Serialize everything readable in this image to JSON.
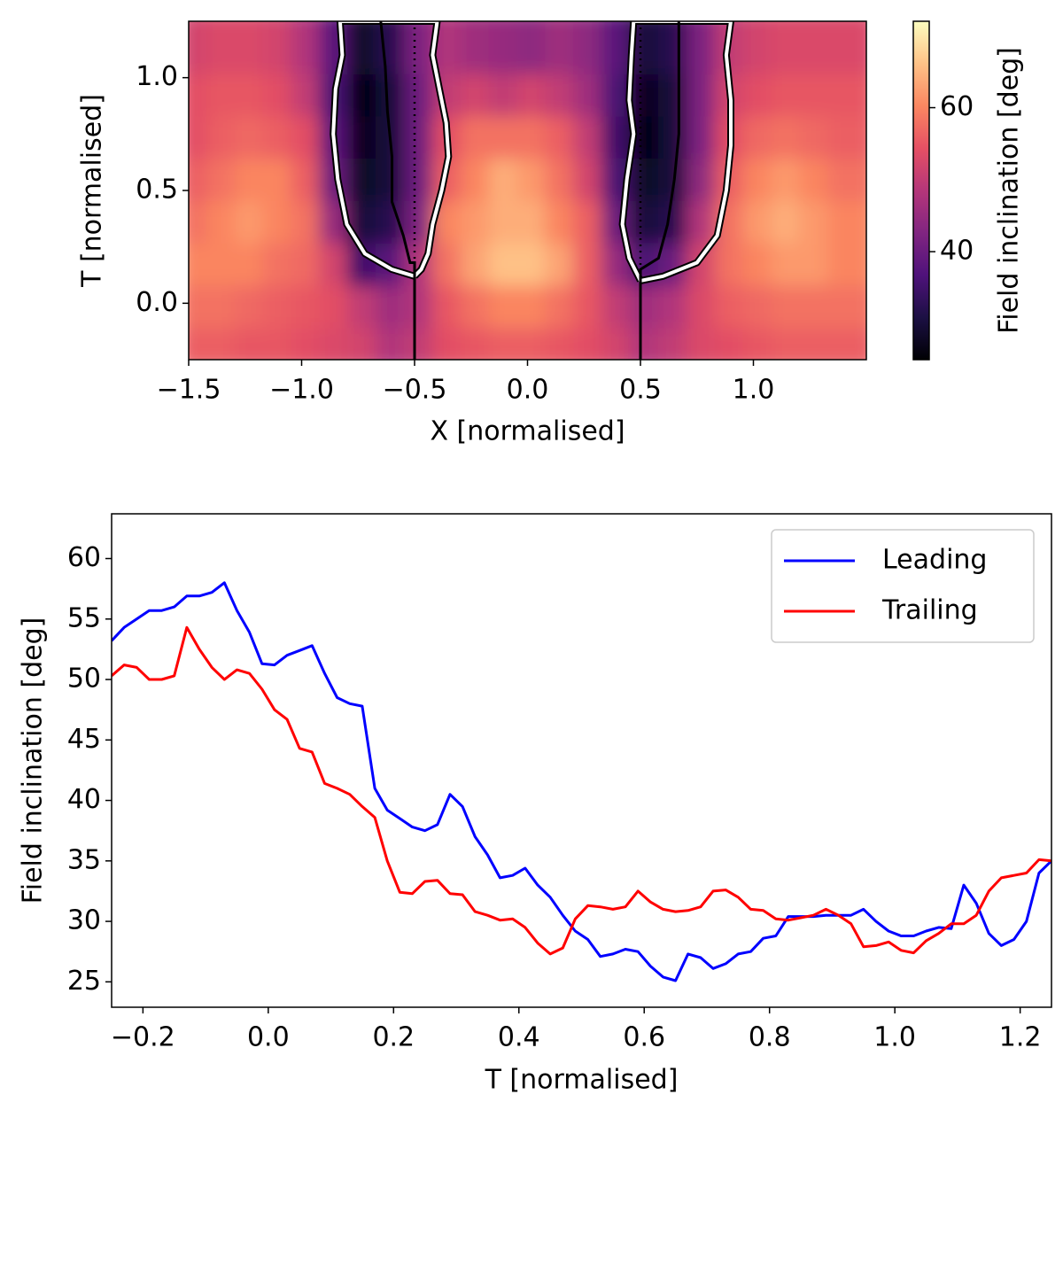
{
  "chart_data": [
    {
      "type": "heatmap",
      "colormap": "magma",
      "xlabel": "X [normalised]",
      "ylabel": "T [normalised]",
      "colorbar_label": "Field inclination [deg]",
      "xlim": [
        -1.5,
        1.5
      ],
      "ylim": [
        -0.25,
        1.25
      ],
      "xticks": [
        {
          "value": -1.5,
          "label": "−1.5"
        },
        {
          "value": -1,
          "label": "−1.0"
        },
        {
          "value": -0.5,
          "label": "−0.5"
        },
        {
          "value": 0,
          "label": "0.0"
        },
        0.5,
        {
          "value": 1,
          "label": "1.0"
        }
      ],
      "yticks": [
        {
          "value": 0,
          "label": "0.0"
        },
        0.5,
        {
          "value": 1,
          "label": "1.0"
        }
      ],
      "clim": [
        25,
        72
      ],
      "cticks": [
        40,
        60
      ],
      "x": [
        -1.4375,
        -1.3125,
        -1.1875,
        -1.0625,
        -0.9375,
        -0.8125,
        -0.6875,
        -0.5625,
        -0.4375,
        -0.3125,
        -0.1875,
        -0.0625,
        0.0625,
        0.1875,
        0.3125,
        0.4375,
        0.5625,
        0.6875,
        0.8125,
        0.9375,
        1.0625,
        1.1875,
        1.3125,
        1.4375
      ],
      "y": [
        -0.15625,
        0.03125,
        0.21875,
        0.40625,
        0.59375,
        0.78125,
        0.96875,
        1.15625
      ],
      "z": [
        [
          56,
          56,
          55,
          55,
          54,
          53,
          52,
          48,
          50,
          54,
          55,
          56,
          56,
          55,
          54,
          52,
          48,
          50,
          53,
          54,
          55,
          56,
          56,
          56
        ],
        [
          58,
          58,
          57,
          56,
          55,
          54,
          50,
          46,
          48,
          55,
          58,
          60,
          60,
          58,
          55,
          50,
          46,
          48,
          53,
          56,
          57,
          58,
          58,
          58
        ],
        [
          60,
          60,
          60,
          58,
          57,
          52,
          35,
          38,
          48,
          58,
          63,
          66,
          66,
          63,
          56,
          45,
          36,
          40,
          52,
          58,
          60,
          62,
          62,
          60
        ],
        [
          58,
          60,
          62,
          60,
          58,
          45,
          30,
          32,
          42,
          60,
          62,
          64,
          64,
          60,
          56,
          40,
          30,
          32,
          48,
          58,
          62,
          64,
          62,
          60
        ],
        [
          56,
          58,
          60,
          60,
          56,
          40,
          28,
          30,
          40,
          56,
          60,
          64,
          62,
          58,
          52,
          36,
          28,
          30,
          44,
          56,
          60,
          62,
          60,
          58
        ],
        [
          54,
          56,
          57,
          56,
          54,
          38,
          27,
          30,
          40,
          54,
          58,
          58,
          58,
          56,
          50,
          35,
          26,
          30,
          42,
          54,
          57,
          58,
          57,
          56
        ],
        [
          54,
          55,
          55,
          54,
          50,
          36,
          26,
          30,
          40,
          50,
          52,
          50,
          52,
          50,
          46,
          36,
          27,
          30,
          42,
          52,
          54,
          55,
          55,
          55
        ],
        [
          52,
          53,
          53,
          52,
          48,
          38,
          28,
          32,
          42,
          48,
          46,
          45,
          44,
          46,
          44,
          38,
          30,
          32,
          42,
          50,
          52,
          53,
          53,
          53
        ]
      ],
      "vlines": [
        -0.5,
        0.5
      ],
      "contours": [
        {
          "x": [
            -0.5,
            -0.6,
            -0.72,
            -0.8,
            -0.84,
            -0.86,
            -0.85,
            -0.82,
            -0.83,
            -0.4,
            -0.42,
            -0.39,
            -0.36,
            -0.35,
            -0.38,
            -0.42,
            -0.44,
            -0.47,
            -0.5
          ],
          "y": [
            0.12,
            0.15,
            0.22,
            0.35,
            0.55,
            0.75,
            0.95,
            1.1,
            1.25,
            1.25,
            1.1,
            0.95,
            0.8,
            0.65,
            0.5,
            0.35,
            0.22,
            0.15,
            0.12
          ]
        },
        {
          "x": [
            0.5,
            0.45,
            0.42,
            0.44,
            0.47,
            0.45,
            0.46,
            0.47,
            0.9,
            0.88,
            0.9,
            0.9,
            0.88,
            0.84,
            0.75,
            0.6,
            0.5
          ],
          "y": [
            0.1,
            0.2,
            0.35,
            0.55,
            0.75,
            0.9,
            1.1,
            1.25,
            1.25,
            1.1,
            0.9,
            0.7,
            0.5,
            0.3,
            0.18,
            0.12,
            0.1
          ]
        }
      ],
      "tracks": [
        {
          "x": [
            -0.5,
            -0.5,
            -0.52,
            -0.55,
            -0.6,
            -0.6,
            -0.62,
            -0.63,
            -0.65
          ],
          "y": [
            -0.25,
            0.18,
            0.18,
            0.3,
            0.45,
            0.65,
            0.85,
            1.05,
            1.25
          ]
        },
        {
          "x": [
            0.5,
            0.5,
            0.58,
            0.62,
            0.65,
            0.67,
            0.67,
            0.67
          ],
          "y": [
            -0.25,
            0.15,
            0.2,
            0.35,
            0.55,
            0.75,
            1.0,
            1.25
          ]
        }
      ]
    },
    {
      "type": "line",
      "xlabel": "T [normalised]",
      "ylabel": "Field inclination [deg]",
      "xlim": [
        -0.25,
        1.25
      ],
      "ylim": [
        22.9,
        63.7
      ],
      "xticks": [
        {
          "value": -0.2,
          "label": "−0.2"
        },
        {
          "value": 0,
          "label": "0.0"
        },
        0.2,
        0.4,
        0.6,
        0.8,
        {
          "value": 1,
          "label": "1.0"
        },
        1.2
      ],
      "yticks": [
        25,
        30,
        35,
        40,
        45,
        50,
        55,
        60
      ],
      "legend": "upper right",
      "x": [
        -0.25,
        -0.23,
        -0.21,
        -0.19,
        -0.17,
        -0.15,
        -0.13,
        -0.11,
        -0.09,
        -0.07,
        -0.05,
        -0.03,
        -0.01,
        0.01,
        0.03,
        0.05,
        0.07,
        0.09,
        0.11,
        0.13,
        0.15,
        0.17,
        0.19,
        0.21,
        0.23,
        0.25,
        0.27,
        0.29,
        0.31,
        0.33,
        0.35,
        0.37,
        0.39,
        0.41,
        0.43,
        0.45,
        0.47,
        0.49,
        0.51,
        0.53,
        0.55,
        0.57,
        0.59,
        0.61,
        0.63,
        0.65,
        0.67,
        0.69,
        0.71,
        0.73,
        0.75,
        0.77,
        0.79,
        0.81,
        0.83,
        0.85,
        0.87,
        0.89,
        0.91,
        0.93,
        0.95,
        0.97,
        0.99,
        1.01,
        1.03,
        1.05,
        1.07,
        1.09,
        1.11,
        1.13,
        1.15,
        1.17,
        1.19,
        1.21,
        1.23,
        1.25
      ],
      "series": [
        {
          "name": "Leading",
          "color": "#0000ff",
          "values": [
            53.2,
            54.3,
            55.0,
            55.7,
            55.7,
            56.0,
            56.9,
            56.9,
            57.2,
            58.0,
            55.7,
            53.9,
            51.3,
            51.2,
            52.0,
            52.4,
            52.8,
            50.5,
            48.5,
            48.0,
            47.8,
            41.0,
            39.2,
            38.5,
            37.8,
            37.5,
            38.0,
            40.5,
            39.5,
            37.0,
            35.5,
            33.6,
            33.8,
            34.4,
            33.0,
            32.0,
            30.5,
            29.2,
            28.5,
            27.1,
            27.3,
            27.7,
            27.5,
            26.3,
            25.4,
            25.1,
            27.3,
            27.0,
            26.1,
            26.5,
            27.3,
            27.5,
            28.6,
            28.8,
            30.4,
            30.4,
            30.4,
            30.5,
            30.5,
            30.5,
            31.0,
            30.0,
            29.2,
            28.8,
            28.8,
            29.2,
            29.5,
            29.4,
            33.0,
            31.5,
            29.0,
            28.0,
            28.5,
            30.0,
            34.0,
            35.0
          ]
        },
        {
          "name": "Trailing",
          "color": "#ff0000",
          "values": [
            50.3,
            51.2,
            51.0,
            50.0,
            50.0,
            50.3,
            54.3,
            52.5,
            51.0,
            50.0,
            50.8,
            50.5,
            49.2,
            47.5,
            46.7,
            44.3,
            44.0,
            41.4,
            41.0,
            40.5,
            39.5,
            38.6,
            35.0,
            32.4,
            32.3,
            33.3,
            33.4,
            32.3,
            32.2,
            30.8,
            30.5,
            30.1,
            30.2,
            29.5,
            28.2,
            27.3,
            27.8,
            30.2,
            31.3,
            31.2,
            31.0,
            31.2,
            32.5,
            31.6,
            31.0,
            30.8,
            30.9,
            31.2,
            32.5,
            32.6,
            32.0,
            31.0,
            30.9,
            30.2,
            30.1,
            30.3,
            30.5,
            31.0,
            30.5,
            29.8,
            27.9,
            28.0,
            28.3,
            27.6,
            27.4,
            28.4,
            29.0,
            29.8,
            29.8,
            30.5,
            32.5,
            33.6,
            33.8,
            34.0,
            35.1,
            35.0
          ]
        }
      ]
    }
  ]
}
